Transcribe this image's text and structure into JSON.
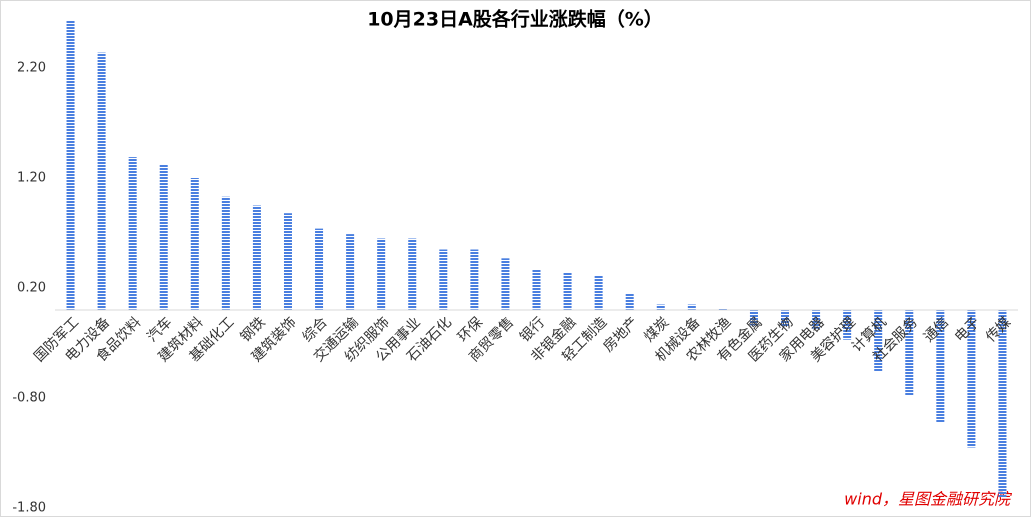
{
  "chart_data": {
    "type": "bar",
    "title": "10月23日A股各行业涨跌幅（%）",
    "annotation": "wind，星图金融研究院",
    "categories": [
      "国防军工",
      "电力设备",
      "食品饮料",
      "汽车",
      "建筑材料",
      "基础化工",
      "钢铁",
      "建筑装饰",
      "综合",
      "交通运输",
      "纺织服饰",
      "公用事业",
      "石油石化",
      "环保",
      "商贸零售",
      "银行",
      "非银金融",
      "轻工制造",
      "房地产",
      "煤炭",
      "机械设备",
      "农林牧渔",
      "有色金属",
      "医药生物",
      "家用电器",
      "美容护理",
      "计算机",
      "社会服务",
      "通信",
      "电子",
      "传媒"
    ],
    "values": [
      2.63,
      2.34,
      1.39,
      1.32,
      1.2,
      1.03,
      0.95,
      0.88,
      0.74,
      0.69,
      0.65,
      0.65,
      0.55,
      0.55,
      0.47,
      0.37,
      0.34,
      0.31,
      0.15,
      0.05,
      0.05,
      0.01,
      -0.14,
      -0.15,
      -0.17,
      -0.27,
      -0.56,
      -0.78,
      -1.02,
      -1.25,
      -1.7
    ],
    "color": "#4a7fe0",
    "ylim": [
      -1.8,
      2.7
    ],
    "yticks": [
      {
        "value": -1.8,
        "label": "-1.80"
      },
      {
        "value": -0.8,
        "label": "-0.80"
      },
      {
        "value": 0.2,
        "label": "0.20"
      },
      {
        "value": 1.2,
        "label": "1.20"
      },
      {
        "value": 2.2,
        "label": "2.20"
      }
    ],
    "grid": false
  }
}
